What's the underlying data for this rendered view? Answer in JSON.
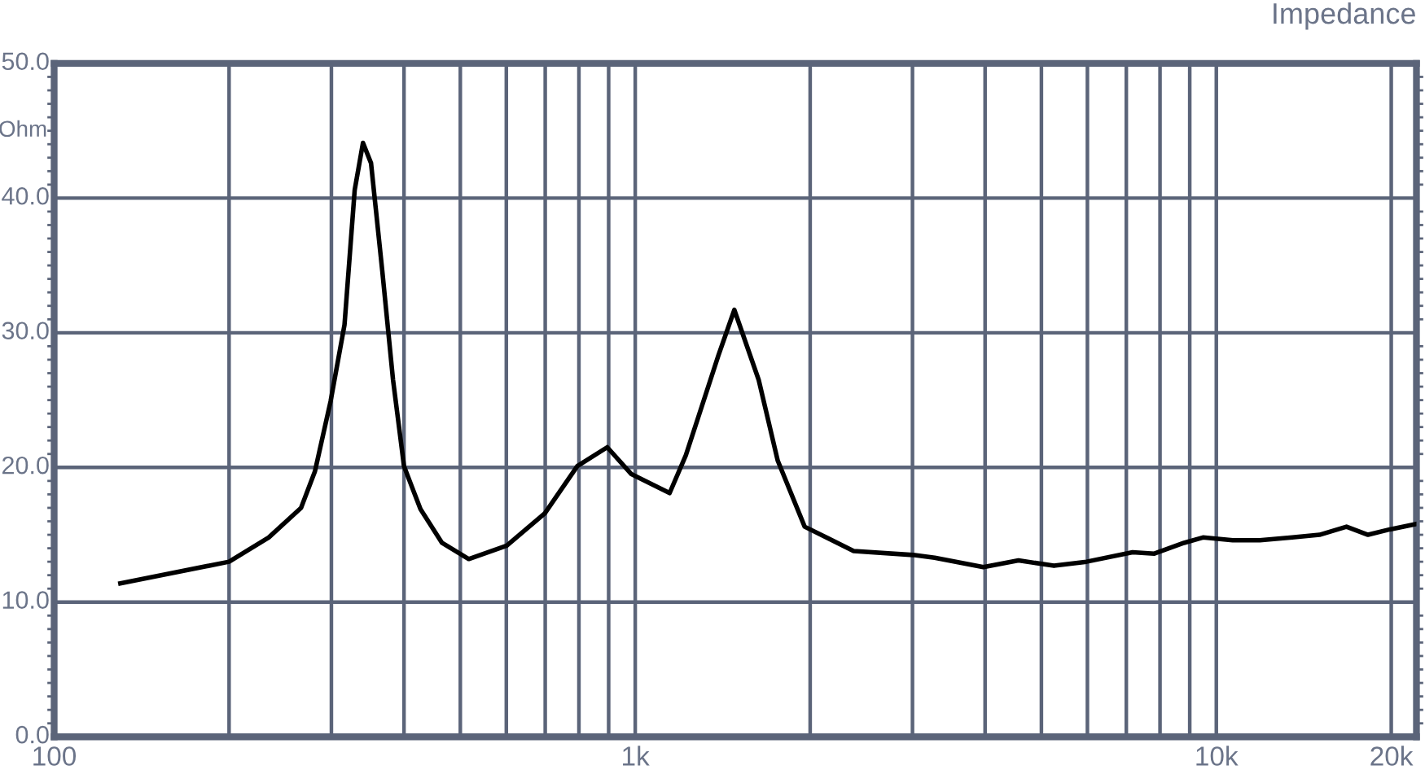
{
  "chart_data": {
    "type": "line",
    "title": "Impedance",
    "ylabel": "Ohm",
    "x": [
      130,
      200,
      234,
      266,
      281,
      299,
      316,
      329,
      340,
      351,
      367,
      383,
      400,
      427,
      465,
      517,
      601,
      699,
      795,
      895,
      985,
      1146,
      1222,
      1390,
      1481,
      1631,
      1759,
      1957,
      2376,
      3008,
      3276,
      3973,
      4566,
      5254,
      5978,
      7176,
      7822,
      8798,
      9484,
      10670,
      11880,
      13510,
      15050,
      16750,
      18240,
      19890,
      22080
    ],
    "series": [
      {
        "color": "#000000",
        "values": [
          11.4,
          13.0,
          14.8,
          17.0,
          19.7,
          24.9,
          30.6,
          40.6,
          44.1,
          42.6,
          34.6,
          26.5,
          20.1,
          16.9,
          14.4,
          13.2,
          14.2,
          16.6,
          20.1,
          21.5,
          19.5,
          18.1,
          20.9,
          28.3,
          31.7,
          26.5,
          20.5,
          15.6,
          13.8,
          13.5,
          13.3,
          12.6,
          13.1,
          12.7,
          13.0,
          13.7,
          13.6,
          14.4,
          14.8,
          14.6,
          14.6,
          14.8,
          15.0,
          15.6,
          15.0,
          15.4,
          15.8
        ]
      }
    ],
    "log": "x",
    "xlim": [
      100,
      22100
    ],
    "xticks": [
      {
        "value": 100,
        "label": "100"
      },
      {
        "value": 200,
        "label": null
      },
      {
        "value": 300,
        "label": null
      },
      {
        "value": 400,
        "label": null
      },
      {
        "value": 500,
        "label": null
      },
      {
        "value": 600,
        "label": null
      },
      {
        "value": 700,
        "label": null
      },
      {
        "value": 800,
        "label": null
      },
      {
        "value": 900,
        "label": null
      },
      {
        "value": 1000,
        "label": "1k"
      },
      {
        "value": 2000,
        "label": null
      },
      {
        "value": 3000,
        "label": null
      },
      {
        "value": 4000,
        "label": null
      },
      {
        "value": 5000,
        "label": null
      },
      {
        "value": 6000,
        "label": null
      },
      {
        "value": 7000,
        "label": null
      },
      {
        "value": 8000,
        "label": null
      },
      {
        "value": 9000,
        "label": null
      },
      {
        "value": 10000,
        "label": "10k"
      },
      {
        "value": 20000,
        "label": "20k"
      }
    ],
    "ylim": [
      0,
      50
    ],
    "yticks": [
      {
        "value": 0,
        "label": "0.0"
      },
      {
        "value": 10,
        "label": "10.0"
      },
      {
        "value": 20,
        "label": "20.0"
      },
      {
        "value": 30,
        "label": "30.0"
      },
      {
        "value": 40,
        "label": "40.0"
      },
      {
        "value": 50,
        "label": "50.0"
      }
    ],
    "grid": true,
    "legend": false,
    "marker": "none",
    "line_style": "solid"
  }
}
